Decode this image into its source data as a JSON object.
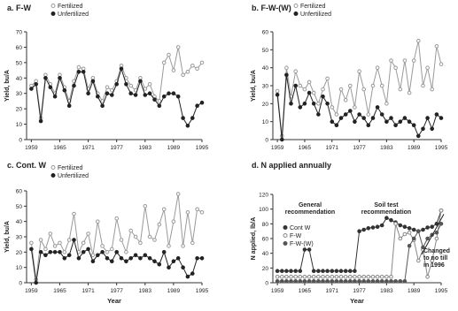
{
  "chart_data": [
    {
      "type": "line",
      "title": "a. F-W",
      "ylabel": "Yield, bu/A",
      "xlabel": "",
      "xlim": [
        1958,
        1995
      ],
      "ylim": [
        0,
        70
      ],
      "xticks": [
        1959,
        1965,
        1971,
        1977,
        1983,
        1989,
        1995
      ],
      "yticks": [
        0,
        10,
        20,
        30,
        40,
        50,
        60,
        70
      ],
      "legend": "top-left",
      "grid": false,
      "series": [
        {
          "name": "Fertilized",
          "marker": "circle-open",
          "color": "#9a9a9a",
          "x": [
            1959,
            1960,
            1961,
            1962,
            1963,
            1964,
            1965,
            1966,
            1967,
            1968,
            1969,
            1970,
            1971,
            1972,
            1973,
            1974,
            1975,
            1976,
            1977,
            1978,
            1979,
            1980,
            1981,
            1982,
            1983,
            1984,
            1985,
            1986,
            1987,
            1988,
            1989,
            1990,
            1991,
            1992,
            1993,
            1994,
            1995
          ],
          "y": [
            35,
            38,
            14,
            42,
            36,
            30,
            42,
            34,
            25,
            38,
            47,
            46,
            33,
            40,
            30,
            25,
            34,
            32,
            38,
            48,
            40,
            35,
            32,
            40,
            33,
            36,
            28,
            25,
            50,
            55,
            45,
            60,
            42,
            44,
            48,
            46,
            50
          ]
        },
        {
          "name": "Unfertilized",
          "marker": "circle-filled",
          "color": "#222222",
          "x": [
            1959,
            1960,
            1961,
            1962,
            1963,
            1964,
            1965,
            1966,
            1967,
            1968,
            1969,
            1970,
            1971,
            1972,
            1973,
            1974,
            1975,
            1976,
            1977,
            1978,
            1979,
            1980,
            1981,
            1982,
            1983,
            1984,
            1985,
            1986,
            1987,
            1988,
            1989,
            1990,
            1991,
            1992,
            1993,
            1994,
            1995
          ],
          "y": [
            33,
            36,
            12,
            40,
            34,
            28,
            40,
            32,
            22,
            35,
            44,
            44,
            30,
            38,
            28,
            22,
            30,
            29,
            36,
            46,
            36,
            30,
            29,
            38,
            29,
            30,
            26,
            22,
            28,
            30,
            30,
            28,
            14,
            9,
            14,
            22,
            24
          ]
        }
      ]
    },
    {
      "type": "line",
      "title": "b. F-W-(W)",
      "ylabel": "Yield, bu/A",
      "xlabel": "",
      "xlim": [
        1958,
        1995
      ],
      "ylim": [
        0,
        60
      ],
      "xticks": [
        1959,
        1965,
        1971,
        1977,
        1983,
        1989,
        1995
      ],
      "yticks": [
        0,
        10,
        20,
        30,
        40,
        50,
        60
      ],
      "legend": "top-left",
      "grid": false,
      "series": [
        {
          "name": "Fertilized",
          "marker": "circle-open",
          "color": "#9a9a9a",
          "x": [
            1959,
            1960,
            1961,
            1962,
            1963,
            1964,
            1965,
            1966,
            1967,
            1968,
            1969,
            1970,
            1971,
            1972,
            1973,
            1974,
            1975,
            1976,
            1977,
            1978,
            1979,
            1980,
            1981,
            1982,
            1983,
            1984,
            1985,
            1986,
            1987,
            1988,
            1989,
            1990,
            1991,
            1992,
            1993,
            1994,
            1995
          ],
          "y": [
            27,
            2,
            40,
            24,
            38,
            30,
            28,
            32,
            26,
            20,
            28,
            34,
            18,
            14,
            28,
            22,
            30,
            18,
            38,
            28,
            14,
            30,
            40,
            30,
            20,
            44,
            40,
            28,
            44,
            26,
            44,
            55,
            30,
            40,
            28,
            52,
            42
          ]
        },
        {
          "name": "Unfertilized",
          "marker": "circle-filled",
          "color": "#222222",
          "x": [
            1959,
            1960,
            1961,
            1962,
            1963,
            1964,
            1965,
            1966,
            1967,
            1968,
            1969,
            1970,
            1971,
            1972,
            1973,
            1974,
            1975,
            1976,
            1977,
            1978,
            1979,
            1980,
            1981,
            1982,
            1983,
            1984,
            1985,
            1986,
            1987,
            1988,
            1989,
            1990,
            1991,
            1992,
            1993,
            1994,
            1995
          ],
          "y": [
            25,
            0,
            36,
            20,
            30,
            18,
            20,
            26,
            20,
            14,
            24,
            20,
            10,
            8,
            12,
            14,
            16,
            10,
            14,
            12,
            8,
            12,
            18,
            14,
            10,
            12,
            8,
            10,
            12,
            10,
            8,
            2,
            6,
            12,
            6,
            14,
            12
          ]
        }
      ]
    },
    {
      "type": "line",
      "title": "c. Cont. W",
      "ylabel": "Yield, bu/A",
      "xlabel": "Year",
      "xlim": [
        1958,
        1995
      ],
      "ylim": [
        0,
        60
      ],
      "xticks": [
        1959,
        1965,
        1971,
        1977,
        1983,
        1989,
        1995
      ],
      "yticks": [
        0,
        10,
        20,
        30,
        40,
        50,
        60
      ],
      "legend": "top-left",
      "grid": false,
      "series": [
        {
          "name": "Fertilized",
          "marker": "circle-open",
          "color": "#9a9a9a",
          "x": [
            1959,
            1960,
            1961,
            1962,
            1963,
            1964,
            1965,
            1966,
            1967,
            1968,
            1969,
            1970,
            1971,
            1972,
            1973,
            1974,
            1975,
            1976,
            1977,
            1978,
            1979,
            1980,
            1981,
            1982,
            1983,
            1984,
            1985,
            1986,
            1987,
            1988,
            1989,
            1990,
            1991,
            1992,
            1993,
            1994,
            1995
          ],
          "y": [
            26,
            2,
            28,
            22,
            32,
            24,
            26,
            20,
            28,
            45,
            20,
            26,
            32,
            18,
            40,
            24,
            20,
            22,
            42,
            28,
            20,
            34,
            30,
            26,
            50,
            30,
            28,
            38,
            48,
            24,
            40,
            58,
            24,
            46,
            26,
            48,
            46
          ]
        },
        {
          "name": "Unfertilized",
          "marker": "circle-filled",
          "color": "#222222",
          "x": [
            1959,
            1960,
            1961,
            1962,
            1963,
            1964,
            1965,
            1966,
            1967,
            1968,
            1969,
            1970,
            1971,
            1972,
            1973,
            1974,
            1975,
            1976,
            1977,
            1978,
            1979,
            1980,
            1981,
            1982,
            1983,
            1984,
            1985,
            1986,
            1987,
            1988,
            1989,
            1990,
            1991,
            1992,
            1993,
            1994,
            1995
          ],
          "y": [
            22,
            0,
            20,
            18,
            20,
            20,
            20,
            16,
            18,
            28,
            16,
            20,
            22,
            14,
            18,
            20,
            16,
            14,
            20,
            16,
            14,
            16,
            18,
            16,
            18,
            16,
            14,
            12,
            20,
            10,
            14,
            16,
            10,
            4,
            6,
            16,
            16
          ]
        }
      ]
    },
    {
      "type": "line",
      "title": "d. N applied annually",
      "ylabel": "N applied, lb/A",
      "xlabel": "Year",
      "xlim": [
        1958,
        1995
      ],
      "ylim": [
        0,
        120
      ],
      "xticks": [
        1959,
        1965,
        1971,
        1977,
        1983,
        1989,
        1995
      ],
      "yticks": [
        0,
        20,
        40,
        60,
        80,
        100,
        120
      ],
      "legend": "middle-left",
      "grid": false,
      "annotations": [
        {
          "text": "General\nrecommendation"
        },
        {
          "text": "Soil test\nrecommendation"
        },
        {
          "text": "Changed\nto no till\nin 1996"
        }
      ],
      "series": [
        {
          "name": "Cont W",
          "marker": "circle-filled",
          "color": "#333333",
          "x": [
            1959,
            1960,
            1961,
            1962,
            1963,
            1964,
            1965,
            1966,
            1967,
            1968,
            1969,
            1970,
            1971,
            1972,
            1973,
            1974,
            1975,
            1976,
            1977,
            1978,
            1979,
            1980,
            1981,
            1982,
            1983,
            1984,
            1985,
            1986,
            1987,
            1988,
            1989,
            1990,
            1991,
            1992,
            1993,
            1994,
            1995
          ],
          "y": [
            16,
            16,
            16,
            16,
            16,
            16,
            45,
            45,
            16,
            16,
            16,
            16,
            16,
            16,
            16,
            16,
            16,
            16,
            70,
            72,
            74,
            75,
            76,
            78,
            88,
            85,
            82,
            78,
            76,
            74,
            72,
            70,
            72,
            75,
            76,
            80,
            98
          ]
        },
        {
          "name": "F-W",
          "marker": "circle-open",
          "color": "#888888",
          "x": [
            1959,
            1960,
            1961,
            1962,
            1963,
            1964,
            1965,
            1966,
            1967,
            1968,
            1969,
            1970,
            1971,
            1972,
            1973,
            1974,
            1975,
            1976,
            1977,
            1978,
            1979,
            1980,
            1981,
            1982,
            1983,
            1984,
            1985,
            1986,
            1987,
            1988,
            1989,
            1990,
            1991,
            1992,
            1993,
            1994,
            1995
          ],
          "y": [
            8,
            8,
            8,
            8,
            8,
            8,
            8,
            8,
            8,
            8,
            8,
            8,
            8,
            8,
            8,
            8,
            8,
            8,
            8,
            8,
            8,
            8,
            8,
            8,
            8,
            8,
            80,
            60,
            66,
            68,
            58,
            30,
            45,
            8,
            30,
            60,
            98
          ]
        },
        {
          "name": "F-W-(W)",
          "marker": "circle-filled",
          "color": "#555555",
          "x": [
            1959,
            1960,
            1961,
            1962,
            1963,
            1964,
            1965,
            1966,
            1967,
            1968,
            1969,
            1970,
            1971,
            1972,
            1973,
            1974,
            1975,
            1976,
            1977,
            1978,
            1979,
            1980,
            1981,
            1982,
            1983,
            1984,
            1985,
            1986,
            1987,
            1988,
            1989,
            1990,
            1991,
            1992,
            1993,
            1994,
            1995
          ],
          "y": [
            2,
            2,
            2,
            2,
            2,
            2,
            2,
            2,
            2,
            2,
            2,
            2,
            2,
            2,
            2,
            2,
            2,
            2,
            2,
            2,
            2,
            2,
            2,
            2,
            2,
            2,
            2,
            2,
            2,
            50,
            60,
            70,
            48,
            60,
            65,
            68,
            80
          ]
        }
      ]
    }
  ]
}
